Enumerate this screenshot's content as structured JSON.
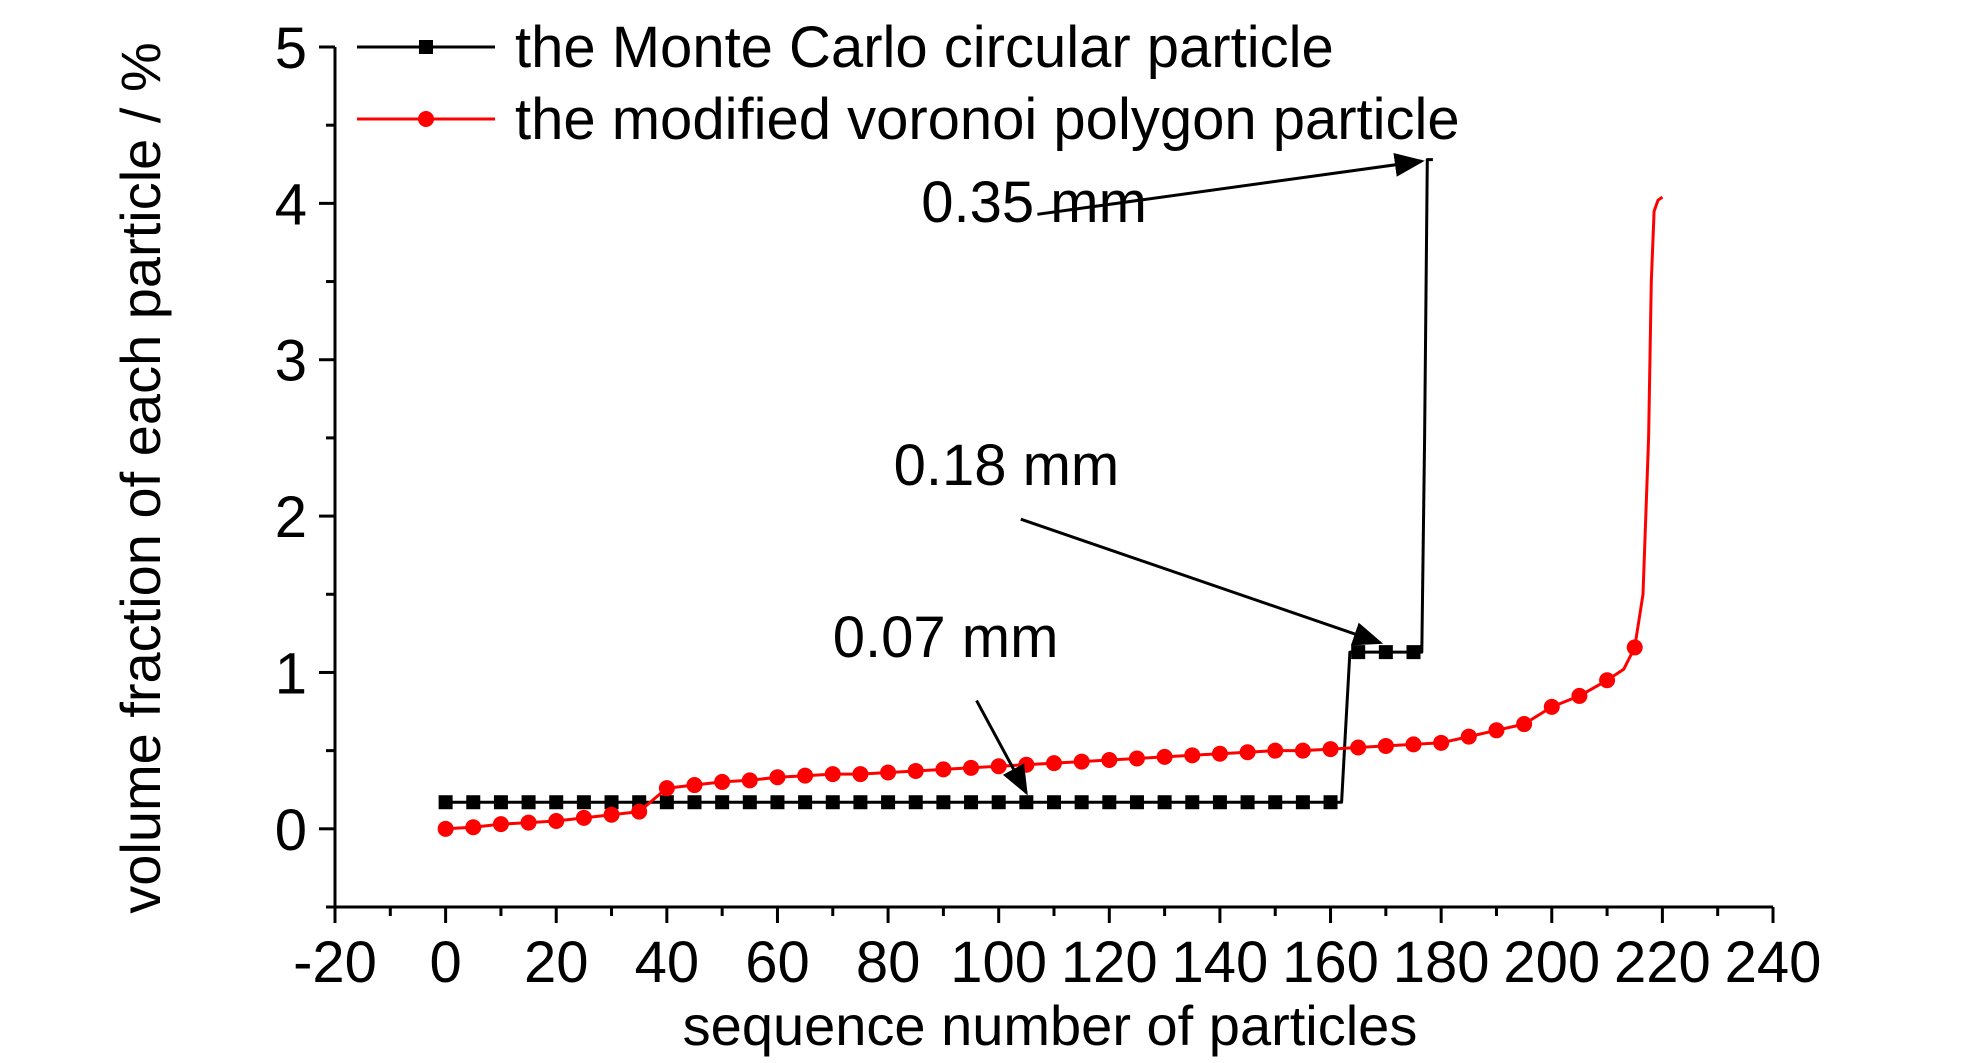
{
  "chart_data": {
    "type": "line",
    "xlabel": "sequence number of particles",
    "ylabel": "volume fraction of each particle / %",
    "xlim": [
      -20,
      240
    ],
    "ylim": [
      -0.5,
      5
    ],
    "xticks": [
      "-20",
      "0",
      "20",
      "40",
      "60",
      "80",
      "100",
      "120",
      "140",
      "160",
      "180",
      "200",
      "220",
      "240"
    ],
    "yticks": [
      "0",
      "1",
      "2",
      "3",
      "4",
      "5"
    ],
    "grid": false,
    "legend_position": "top-left",
    "series": [
      {
        "name": "the Monte Carlo circular particle",
        "color": "#000000",
        "marker": "square",
        "marker_x": [
          0,
          5,
          10,
          15,
          20,
          25,
          30,
          35,
          40,
          45,
          50,
          55,
          60,
          65,
          70,
          75,
          80,
          85,
          90,
          95,
          100,
          105,
          110,
          115,
          120,
          125,
          130,
          135,
          140,
          145,
          150,
          155,
          160,
          165,
          170,
          175
        ],
        "marker_y": [
          0.17,
          0.17,
          0.17,
          0.17,
          0.17,
          0.17,
          0.17,
          0.17,
          0.17,
          0.17,
          0.17,
          0.17,
          0.17,
          0.17,
          0.17,
          0.17,
          0.17,
          0.17,
          0.17,
          0.17,
          0.17,
          0.17,
          0.17,
          0.17,
          0.17,
          0.17,
          0.17,
          0.17,
          0.17,
          0.17,
          0.17,
          0.17,
          0.17,
          1.13,
          1.13,
          1.13
        ],
        "line_x": [
          0,
          162,
          162.5,
          163.5,
          176.5,
          177,
          177.5,
          178.5
        ],
        "line_y": [
          0.17,
          0.17,
          0.5,
          1.13,
          1.13,
          2.5,
          4.28,
          4.28
        ]
      },
      {
        "name": "the modified voronoi polygon particle",
        "color": "#ff0000",
        "marker": "circle",
        "marker_x": [
          0,
          5,
          10,
          15,
          20,
          25,
          30,
          35,
          40,
          45,
          50,
          55,
          60,
          65,
          70,
          75,
          80,
          85,
          90,
          95,
          100,
          105,
          110,
          115,
          120,
          125,
          130,
          135,
          140,
          145,
          150,
          155,
          160,
          165,
          170,
          175,
          180,
          185,
          190,
          195,
          200,
          205,
          210,
          215
        ],
        "marker_y": [
          0.0,
          0.01,
          0.03,
          0.04,
          0.05,
          0.07,
          0.09,
          0.11,
          0.26,
          0.28,
          0.3,
          0.31,
          0.33,
          0.34,
          0.35,
          0.35,
          0.36,
          0.37,
          0.38,
          0.39,
          0.4,
          0.41,
          0.42,
          0.43,
          0.44,
          0.45,
          0.46,
          0.47,
          0.48,
          0.49,
          0.5,
          0.5,
          0.51,
          0.52,
          0.53,
          0.54,
          0.55,
          0.59,
          0.63,
          0.67,
          0.78,
          0.85,
          0.95,
          1.16
        ],
        "line_x": [
          0,
          5,
          10,
          15,
          20,
          25,
          30,
          35,
          38,
          40,
          45,
          50,
          55,
          60,
          65,
          70,
          75,
          80,
          85,
          90,
          95,
          100,
          105,
          110,
          115,
          120,
          125,
          130,
          135,
          140,
          145,
          150,
          155,
          160,
          165,
          170,
          175,
          180,
          185,
          190,
          195,
          200,
          205,
          210,
          213,
          215,
          216.5,
          217.5,
          218,
          218.5,
          219.2,
          220
        ],
        "line_y": [
          0.0,
          0.01,
          0.03,
          0.04,
          0.05,
          0.07,
          0.09,
          0.11,
          0.2,
          0.26,
          0.28,
          0.3,
          0.31,
          0.33,
          0.34,
          0.35,
          0.35,
          0.36,
          0.37,
          0.38,
          0.39,
          0.4,
          0.41,
          0.42,
          0.43,
          0.44,
          0.45,
          0.46,
          0.47,
          0.48,
          0.49,
          0.5,
          0.5,
          0.51,
          0.52,
          0.53,
          0.54,
          0.55,
          0.59,
          0.63,
          0.67,
          0.78,
          0.85,
          0.95,
          1.02,
          1.16,
          1.5,
          2.5,
          3.5,
          3.95,
          4.02,
          4.04
        ]
      }
    ],
    "annotations": [
      {
        "text": "0.35 mm",
        "label_at": [
          86,
          3.88
        ],
        "arrow_from": [
          107,
          3.93
        ],
        "arrow_to": [
          176.5,
          4.27
        ]
      },
      {
        "text": "0.18 mm",
        "label_at": [
          81,
          2.2
        ],
        "arrow_from": [
          104,
          1.98
        ],
        "arrow_to": [
          169,
          1.19
        ]
      },
      {
        "text": "0.07 mm",
        "label_at": [
          70,
          1.1
        ],
        "arrow_from": [
          96,
          0.82
        ],
        "arrow_to": [
          105,
          0.23
        ]
      }
    ]
  }
}
